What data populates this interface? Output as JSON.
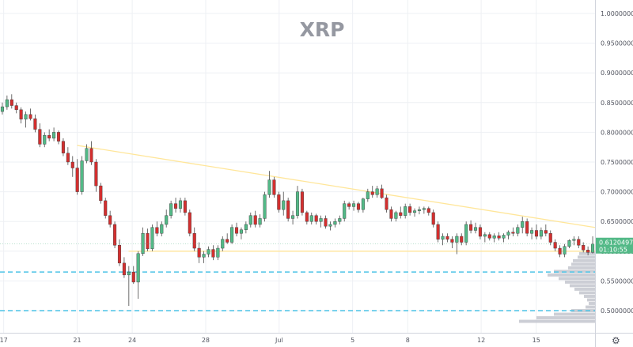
{
  "chart_data": {
    "type": "candlestick",
    "title": "XRP",
    "ylim": [
      0.48,
      1.02
    ],
    "y_ticks": [
      "1.00000000",
      "0.95000000",
      "0.90000000",
      "0.85000000",
      "0.80000000",
      "0.75000000",
      "0.70000000",
      "0.65000000",
      "0.60000000",
      "0.55000000",
      "0.50000000"
    ],
    "y_tick_values": [
      1.0,
      0.95,
      0.9,
      0.85,
      0.8,
      0.75,
      0.7,
      0.65,
      0.6,
      0.55,
      0.5
    ],
    "x_tick_labels": [
      "17",
      "21",
      "24",
      "28",
      "Jul",
      "5",
      "8",
      "12",
      "15"
    ],
    "x_tick_times": [
      0,
      4,
      7,
      11,
      15,
      19,
      22,
      26,
      29
    ],
    "x_range": [
      -0.2,
      32.2
    ],
    "current_price": {
      "value": 0.61204972,
      "label": "0.61204972",
      "countdown": "01:10:55"
    },
    "trendlines": [
      {
        "name": "descending resistance",
        "x": [
          4,
          32.2
        ],
        "y": [
          0.778,
          0.64
        ]
      },
      {
        "name": "horizontal support",
        "x": [
          6.8,
          32.2
        ],
        "y": [
          0.6,
          0.6
        ]
      }
    ],
    "horizontal_levels": [
      {
        "name": "support 1",
        "y": 0.565
      },
      {
        "name": "support 2",
        "y": 0.5
      }
    ],
    "colors": {
      "up": "#53b987",
      "down": "#d32f2f",
      "trendline": "#ffe69a",
      "level": "#4dc4e6",
      "price_tag": "#53b987",
      "volume_profile": "#c3c6ce"
    },
    "volume_profile": [
      {
        "price": 0.596,
        "vol": 0.2
      },
      {
        "price": 0.59,
        "vol": 0.22
      },
      {
        "price": 0.584,
        "vol": 0.28
      },
      {
        "price": 0.578,
        "vol": 0.3
      },
      {
        "price": 0.572,
        "vol": 0.34
      },
      {
        "price": 0.566,
        "vol": 0.52
      },
      {
        "price": 0.56,
        "vol": 0.6
      },
      {
        "price": 0.554,
        "vol": 0.46
      },
      {
        "price": 0.548,
        "vol": 0.38
      },
      {
        "price": 0.542,
        "vol": 0.32
      },
      {
        "price": 0.536,
        "vol": 0.26
      },
      {
        "price": 0.53,
        "vol": 0.2
      },
      {
        "price": 0.524,
        "vol": 0.14
      },
      {
        "price": 0.518,
        "vol": 0.1
      },
      {
        "price": 0.512,
        "vol": 0.08
      },
      {
        "price": 0.506,
        "vol": 0.12
      },
      {
        "price": 0.5,
        "vol": 0.3
      },
      {
        "price": 0.494,
        "vol": 0.52
      },
      {
        "price": 0.488,
        "vol": 0.74
      },
      {
        "price": 0.482,
        "vol": 0.96
      }
    ],
    "candles": [
      [
        0.835,
        0.85,
        0.83,
        0.843
      ],
      [
        0.843,
        0.862,
        0.838,
        0.855
      ],
      [
        0.855,
        0.864,
        0.84,
        0.845
      ],
      [
        0.845,
        0.85,
        0.832,
        0.838
      ],
      [
        0.838,
        0.842,
        0.815,
        0.822
      ],
      [
        0.822,
        0.835,
        0.808,
        0.83
      ],
      [
        0.83,
        0.84,
        0.82,
        0.823
      ],
      [
        0.823,
        0.83,
        0.8,
        0.805
      ],
      [
        0.805,
        0.815,
        0.775,
        0.78
      ],
      [
        0.78,
        0.8,
        0.775,
        0.795
      ],
      [
        0.795,
        0.805,
        0.785,
        0.79
      ],
      [
        0.79,
        0.808,
        0.785,
        0.8
      ],
      [
        0.8,
        0.803,
        0.78,
        0.785
      ],
      [
        0.785,
        0.79,
        0.76,
        0.765
      ],
      [
        0.765,
        0.775,
        0.745,
        0.75
      ],
      [
        0.75,
        0.76,
        0.725,
        0.74
      ],
      [
        0.74,
        0.755,
        0.695,
        0.7
      ],
      [
        0.7,
        0.76,
        0.695,
        0.752
      ],
      [
        0.752,
        0.78,
        0.748,
        0.773
      ],
      [
        0.773,
        0.785,
        0.745,
        0.75
      ],
      [
        0.75,
        0.755,
        0.7,
        0.71
      ],
      [
        0.71,
        0.715,
        0.68,
        0.685
      ],
      [
        0.685,
        0.69,
        0.655,
        0.66
      ],
      [
        0.66,
        0.668,
        0.64,
        0.645
      ],
      [
        0.645,
        0.65,
        0.605,
        0.61
      ],
      [
        0.61,
        0.62,
        0.575,
        0.58
      ],
      [
        0.58,
        0.59,
        0.555,
        0.56
      ],
      [
        0.56,
        0.575,
        0.508,
        0.565
      ],
      [
        0.565,
        0.575,
        0.545,
        0.548
      ],
      [
        0.548,
        0.6,
        0.52,
        0.596
      ],
      [
        0.596,
        0.64,
        0.592,
        0.63
      ],
      [
        0.63,
        0.638,
        0.6,
        0.604
      ],
      [
        0.604,
        0.645,
        0.6,
        0.64
      ],
      [
        0.64,
        0.65,
        0.625,
        0.63
      ],
      [
        0.63,
        0.65,
        0.625,
        0.645
      ],
      [
        0.645,
        0.67,
        0.64,
        0.66
      ],
      [
        0.66,
        0.685,
        0.655,
        0.68
      ],
      [
        0.68,
        0.69,
        0.665,
        0.672
      ],
      [
        0.672,
        0.69,
        0.665,
        0.685
      ],
      [
        0.685,
        0.69,
        0.66,
        0.665
      ],
      [
        0.665,
        0.67,
        0.625,
        0.63
      ],
      [
        0.63,
        0.64,
        0.6,
        0.605
      ],
      [
        0.605,
        0.615,
        0.58,
        0.59
      ],
      [
        0.59,
        0.6,
        0.58,
        0.595
      ],
      [
        0.595,
        0.608,
        0.59,
        0.603
      ],
      [
        0.603,
        0.61,
        0.585,
        0.59
      ],
      [
        0.59,
        0.61,
        0.585,
        0.605
      ],
      [
        0.605,
        0.625,
        0.6,
        0.62
      ],
      [
        0.62,
        0.63,
        0.612,
        0.615
      ],
      [
        0.615,
        0.645,
        0.612,
        0.64
      ],
      [
        0.64,
        0.648,
        0.625,
        0.63
      ],
      [
        0.63,
        0.64,
        0.62,
        0.636
      ],
      [
        0.636,
        0.65,
        0.63,
        0.645
      ],
      [
        0.645,
        0.665,
        0.64,
        0.66
      ],
      [
        0.66,
        0.668,
        0.64,
        0.645
      ],
      [
        0.645,
        0.662,
        0.64,
        0.655
      ],
      [
        0.655,
        0.7,
        0.65,
        0.695
      ],
      [
        0.695,
        0.735,
        0.69,
        0.72
      ],
      [
        0.72,
        0.725,
        0.69,
        0.695
      ],
      [
        0.695,
        0.7,
        0.665,
        0.67
      ],
      [
        0.67,
        0.7,
        0.66,
        0.685
      ],
      [
        0.685,
        0.69,
        0.65,
        0.655
      ],
      [
        0.655,
        0.668,
        0.645,
        0.66
      ],
      [
        0.66,
        0.71,
        0.655,
        0.7
      ],
      [
        0.7,
        0.705,
        0.66,
        0.665
      ],
      [
        0.665,
        0.668,
        0.645,
        0.65
      ],
      [
        0.65,
        0.665,
        0.645,
        0.66
      ],
      [
        0.66,
        0.663,
        0.645,
        0.65
      ],
      [
        0.65,
        0.66,
        0.64,
        0.655
      ],
      [
        0.655,
        0.66,
        0.638,
        0.642
      ],
      [
        0.642,
        0.65,
        0.635,
        0.645
      ],
      [
        0.645,
        0.655,
        0.64,
        0.65
      ],
      [
        0.65,
        0.66,
        0.645,
        0.655
      ],
      [
        0.655,
        0.685,
        0.65,
        0.68
      ],
      [
        0.68,
        0.683,
        0.67,
        0.675
      ],
      [
        0.675,
        0.685,
        0.668,
        0.68
      ],
      [
        0.68,
        0.683,
        0.665,
        0.67
      ],
      [
        0.67,
        0.69,
        0.665,
        0.688
      ],
      [
        0.688,
        0.705,
        0.683,
        0.7
      ],
      [
        0.7,
        0.71,
        0.69,
        0.695
      ],
      [
        0.695,
        0.71,
        0.69,
        0.705
      ],
      [
        0.705,
        0.712,
        0.688,
        0.69
      ],
      [
        0.69,
        0.695,
        0.665,
        0.67
      ],
      [
        0.67,
        0.675,
        0.65,
        0.655
      ],
      [
        0.655,
        0.668,
        0.65,
        0.665
      ],
      [
        0.665,
        0.675,
        0.655,
        0.66
      ],
      [
        0.66,
        0.68,
        0.655,
        0.675
      ],
      [
        0.675,
        0.68,
        0.66,
        0.665
      ],
      [
        0.665,
        0.672,
        0.658,
        0.668
      ],
      [
        0.668,
        0.675,
        0.662,
        0.67
      ],
      [
        0.67,
        0.675,
        0.663,
        0.672
      ],
      [
        0.672,
        0.675,
        0.66,
        0.665
      ],
      [
        0.665,
        0.67,
        0.64,
        0.645
      ],
      [
        0.645,
        0.65,
        0.615,
        0.62
      ],
      [
        0.62,
        0.63,
        0.61,
        0.625
      ],
      [
        0.625,
        0.63,
        0.615,
        0.62
      ],
      [
        0.62,
        0.625,
        0.605,
        0.615
      ],
      [
        0.615,
        0.63,
        0.595,
        0.625
      ],
      [
        0.625,
        0.63,
        0.61,
        0.615
      ],
      [
        0.615,
        0.65,
        0.61,
        0.645
      ],
      [
        0.645,
        0.652,
        0.63,
        0.635
      ],
      [
        0.635,
        0.648,
        0.63,
        0.64
      ],
      [
        0.64,
        0.645,
        0.62,
        0.625
      ],
      [
        0.625,
        0.632,
        0.615,
        0.628
      ],
      [
        0.628,
        0.632,
        0.618,
        0.622
      ],
      [
        0.622,
        0.63,
        0.615,
        0.626
      ],
      [
        0.626,
        0.632,
        0.618,
        0.622
      ],
      [
        0.622,
        0.63,
        0.615,
        0.627
      ],
      [
        0.627,
        0.635,
        0.62,
        0.632
      ],
      [
        0.632,
        0.64,
        0.625,
        0.63
      ],
      [
        0.63,
        0.645,
        0.625,
        0.64
      ],
      [
        0.64,
        0.658,
        0.63,
        0.65
      ],
      [
        0.65,
        0.655,
        0.625,
        0.63
      ],
      [
        0.63,
        0.64,
        0.62,
        0.635
      ],
      [
        0.635,
        0.645,
        0.62,
        0.625
      ],
      [
        0.625,
        0.64,
        0.62,
        0.635
      ],
      [
        0.635,
        0.645,
        0.625,
        0.63
      ],
      [
        0.63,
        0.635,
        0.61,
        0.615
      ],
      [
        0.615,
        0.62,
        0.6,
        0.605
      ],
      [
        0.605,
        0.61,
        0.59,
        0.595
      ],
      [
        0.595,
        0.612,
        0.59,
        0.608
      ],
      [
        0.608,
        0.62,
        0.605,
        0.618
      ],
      [
        0.618,
        0.625,
        0.61,
        0.62
      ],
      [
        0.62,
        0.625,
        0.605,
        0.61
      ],
      [
        0.61,
        0.615,
        0.598,
        0.602
      ],
      [
        0.602,
        0.608,
        0.593,
        0.598
      ],
      [
        0.598,
        0.625,
        0.596,
        0.612
      ]
    ]
  }
}
